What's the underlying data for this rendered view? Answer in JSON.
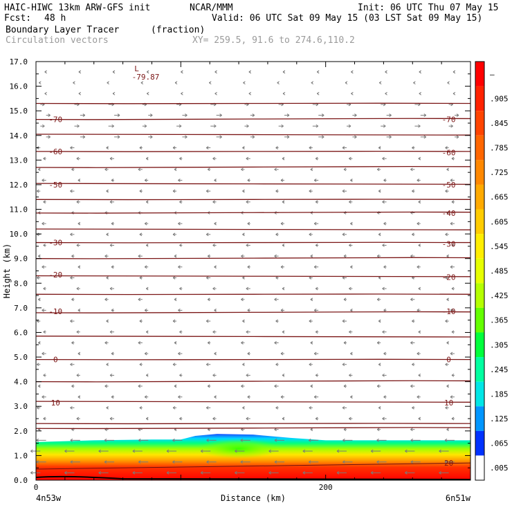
{
  "header": {
    "model": "HAIC-HIWC 13km ARW-GFS init",
    "org": "NCAR/MMM",
    "init": "Init: 06 UTC Thu 07 May 15",
    "fcst_label": "Fcst:",
    "fcst_value": "48 h",
    "valid": "Valid: 06 UTC Sat 09 May 15 (03 LST Sat 09 May 15)",
    "field_name": "Boundary Layer Tracer",
    "field_units": "(fraction)",
    "vector_label": "Circulation vectors",
    "xy_label": "XY= 259.5, 91.6 to 274.6,110.2"
  },
  "chart_data": {
    "type": "heatmap",
    "xlabel": "Distance (km)",
    "ylabel": "Height (km)",
    "xlim": [
      0,
      300
    ],
    "ylim": [
      0,
      17
    ],
    "x_ticks": [
      0,
      200
    ],
    "x_tick_labels": [
      "0",
      "200"
    ],
    "y_ticks": [
      0,
      1,
      2,
      3,
      4,
      5,
      6,
      7,
      8,
      9,
      10,
      11,
      12,
      13,
      14,
      15,
      16,
      17
    ],
    "y_tick_labels": [
      "0.0",
      "1.0",
      "2.0",
      "3.0",
      "4.0",
      "5.0",
      "6.0",
      "7.0",
      "8.0",
      "9.0",
      "10.0",
      "11.0",
      "12.0",
      "13.0",
      "14.0",
      "15.0",
      "16.0",
      "17.0"
    ],
    "left_endpoint": "4n53w",
    "right_endpoint": "6n51w",
    "colorbar": {
      "labels": [
        "–",
        ".905",
        ".845",
        ".785",
        ".725",
        ".665",
        ".605",
        ".545",
        ".485",
        ".425",
        ".365",
        ".305",
        ".245",
        ".185",
        ".125",
        ".065",
        ".005"
      ],
      "colors": [
        "#ff0000",
        "#ff2200",
        "#ff4400",
        "#ff6600",
        "#ff8800",
        "#ffaa00",
        "#ffcc00",
        "#ffee00",
        "#e6ff00",
        "#b4ff00",
        "#64ff00",
        "#00ff3c",
        "#00ffa0",
        "#00e6e6",
        "#0096ff",
        "#0032ff",
        "#ffffff"
      ]
    },
    "temperature_contours": {
      "left_labels": [
        {
          "value": "-70",
          "y": 14.65
        },
        {
          "value": "-60",
          "y": 13.35
        },
        {
          "value": "-50",
          "y": 12.0
        },
        {
          "value": "-30",
          "y": 9.65
        },
        {
          "value": "-20",
          "y": 8.35
        },
        {
          "value": "-10",
          "y": 6.85
        },
        {
          "value": "0",
          "y": 4.9
        },
        {
          "value": "10",
          "y": 3.15
        }
      ],
      "right_labels": [
        {
          "value": "-70",
          "y": 14.65
        },
        {
          "value": "-60",
          "y": 13.3
        },
        {
          "value": "-50",
          "y": 12.0
        },
        {
          "value": "-40",
          "y": 10.85
        },
        {
          "value": "-30",
          "y": 9.6
        },
        {
          "value": "-20",
          "y": 8.25
        },
        {
          "value": "-10",
          "y": 6.85
        },
        {
          "value": "0",
          "y": 4.9
        },
        {
          "value": "10",
          "y": 3.15
        },
        {
          "value": "20",
          "y": 0.7
        }
      ],
      "line_heights": [
        2.1,
        2.3,
        3.2,
        4.0,
        4.9,
        5.85,
        6.8,
        7.55,
        8.3,
        9.0,
        9.65,
        10.2,
        10.85,
        11.4,
        12.05,
        12.7,
        13.35,
        14.05,
        14.65,
        15.3
      ]
    },
    "low_marker": {
      "symbol": "L",
      "value": "-79.87",
      "x": 70,
      "y": 16.6
    },
    "tracer_layer": {
      "top_profile": [
        [
          0,
          1.55
        ],
        [
          40,
          1.62
        ],
        [
          80,
          1.65
        ],
        [
          100,
          1.65
        ],
        [
          110,
          1.8
        ],
        [
          125,
          1.88
        ],
        [
          150,
          1.85
        ],
        [
          175,
          1.72
        ],
        [
          200,
          1.62
        ],
        [
          240,
          1.62
        ],
        [
          270,
          1.62
        ],
        [
          300,
          1.62
        ]
      ]
    },
    "vectors_direction": "westward"
  }
}
